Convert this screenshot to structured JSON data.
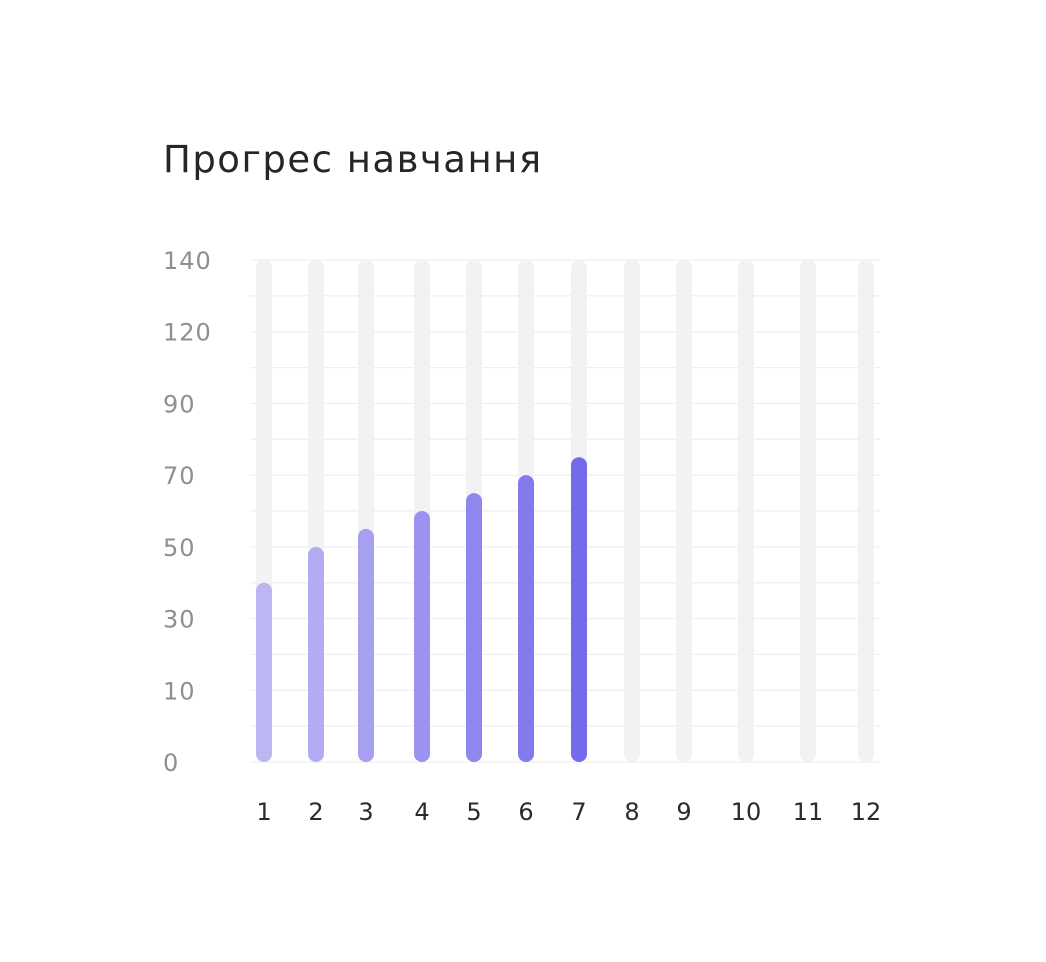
{
  "chart_data": {
    "type": "bar",
    "title": "Прогрес навчання",
    "categories": [
      "1",
      "2",
      "3",
      "4",
      "5",
      "6",
      "7",
      "8",
      "9",
      "10",
      "11",
      "12"
    ],
    "values": [
      40,
      50,
      55,
      60,
      65,
      70,
      75,
      null,
      null,
      null,
      null,
      null
    ],
    "y_ticks": [
      "0",
      "10",
      "30",
      "50",
      "70",
      "90",
      "120",
      "140"
    ],
    "xlabel": "",
    "ylabel": "",
    "grid": true,
    "legend": "none"
  },
  "colors": {
    "track": "#f2f2f2",
    "grid": "#efefef",
    "bars": [
      "#bcb7f3",
      "#b2acf2",
      "#a7a0f1",
      "#9b93ef",
      "#8f86ee",
      "#837aed",
      "#746aec"
    ]
  }
}
